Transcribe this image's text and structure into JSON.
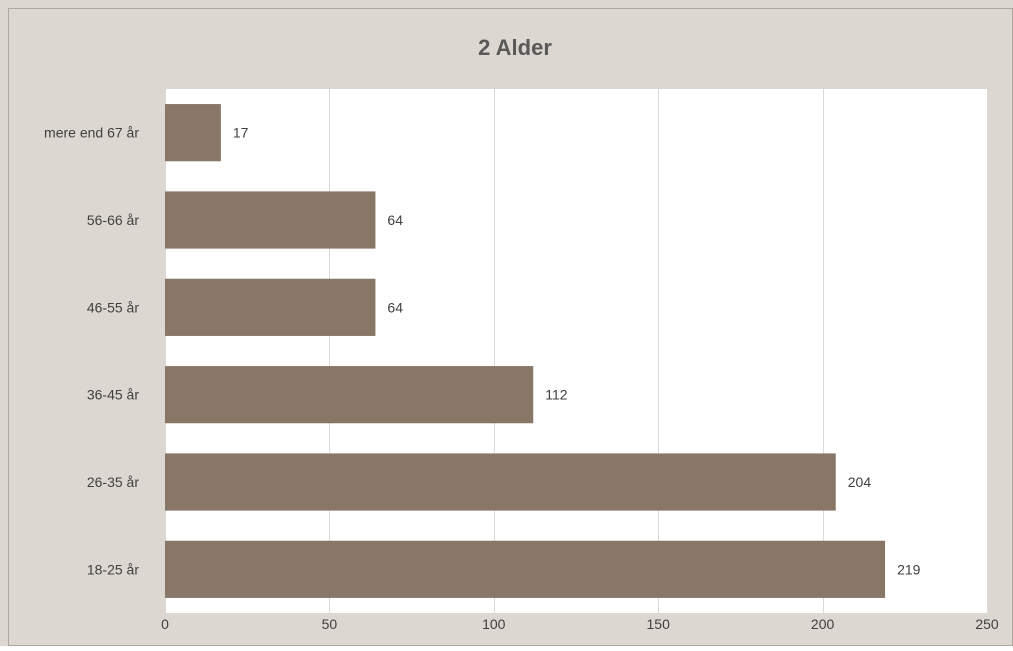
{
  "chart_data": {
    "type": "bar",
    "orientation": "horizontal",
    "title": "2 Alder",
    "categories": [
      "mere end 67 år",
      "56-66 år",
      "46-55 år",
      "36-45 år",
      "26-35 år",
      "18-25 år"
    ],
    "values": [
      17,
      64,
      64,
      112,
      204,
      219
    ],
    "xlim": [
      0,
      250
    ],
    "xticks": [
      0,
      50,
      100,
      150,
      200,
      250
    ],
    "grid": true,
    "legend": false,
    "colors": {
      "background": "#dcd7d1",
      "plot_area": "#ffffff",
      "bar": "#887667",
      "gridline": "#d9d9d9",
      "title": "#595959",
      "text": "#404040"
    }
  }
}
